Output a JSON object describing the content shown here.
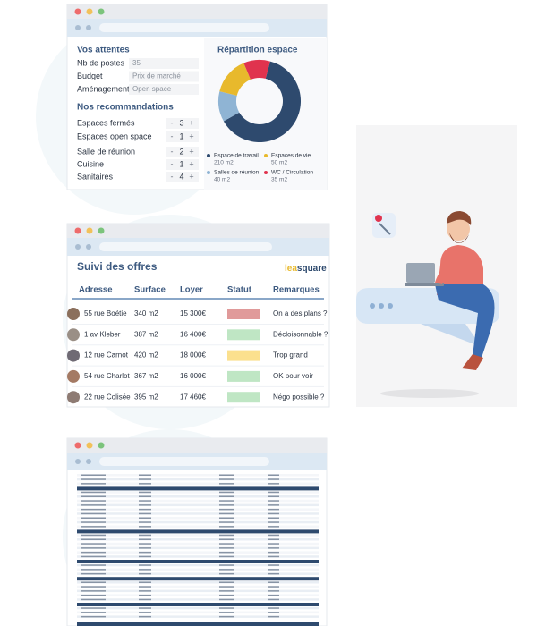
{
  "expectations": {
    "title": "Vos attentes",
    "fields": [
      {
        "label": "Nb de postes",
        "value": "35"
      },
      {
        "label": "Budget",
        "value": "Prix de marché"
      },
      {
        "label": "Aménagement",
        "value": "Open space"
      }
    ]
  },
  "recommendations": {
    "title": "Nos recommandations",
    "decrement": "-",
    "increment": "+",
    "items": [
      {
        "label": "Espaces fermés",
        "count": 3
      },
      {
        "label": "Espaces open space",
        "count": 1
      },
      {
        "label": "Salle de réunion",
        "count": 2
      },
      {
        "label": "Cuisine",
        "count": 1
      },
      {
        "label": "Sanitaires",
        "count": 4
      }
    ]
  },
  "space_chart": {
    "type": "pie",
    "title": "Répartition espace",
    "categories": [
      "Espace de travail",
      "Espaces de vie",
      "Salles de réunion",
      "WC / Circulation"
    ],
    "values": [
      210,
      50,
      40,
      35
    ],
    "value_labels": [
      "210 m2",
      "50 m2",
      "40 m2",
      "35 m2"
    ],
    "colors": [
      "#2e4a6e",
      "#e8b92c",
      "#8fb4d4",
      "#e0334e"
    ]
  },
  "offers": {
    "title": "Suivi des offres",
    "logo_prefix": "lea",
    "logo_suffix": "square",
    "columns": [
      "Adresse",
      "Surface",
      "Loyer",
      "Statut",
      "Remarques"
    ],
    "rows": [
      {
        "address": "55 rue Boétie",
        "surface": "340 m2",
        "rent": "15 300€",
        "status_color": "#e09a9a",
        "remark": "On a des plans ?"
      },
      {
        "address": "1 av Kleber",
        "surface": "387 m2",
        "rent": "16 400€",
        "status_color": "#bfe6c4",
        "remark": "Décloisonnable ?"
      },
      {
        "address": "12 rue Carnot",
        "surface": "420 m2",
        "rent": "18 000€",
        "status_color": "#fbe08e",
        "remark": "Trop grand"
      },
      {
        "address": "54 rue Charlot",
        "surface": "367 m2",
        "rent": "16 000€",
        "status_color": "#bfe6c4",
        "remark": "OK pour voir"
      },
      {
        "address": "22 rue Colisée",
        "surface": "395 m2",
        "rent": "17 460€",
        "status_color": "#bfe6c4",
        "remark": "Négo possible ?"
      }
    ]
  }
}
